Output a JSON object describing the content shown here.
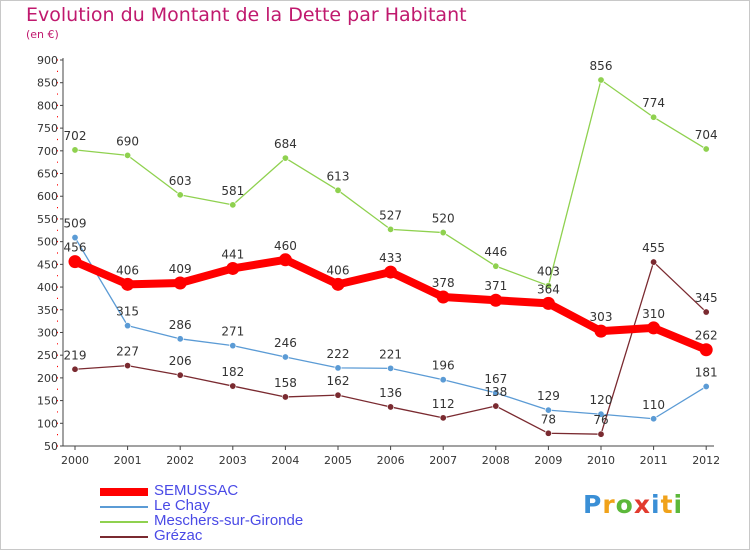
{
  "page": {
    "title": "Evolution du Montant de la Dette par Habitant",
    "subtitle": "(en €)",
    "brand_letters": [
      {
        "ch": "P",
        "color": "#3a8fd6"
      },
      {
        "ch": "r",
        "color": "#f0a21a"
      },
      {
        "ch": "o",
        "color": "#5cb83a"
      },
      {
        "ch": "x",
        "color": "#e23a2e"
      },
      {
        "ch": "i",
        "color": "#3a8fd6"
      },
      {
        "ch": "t",
        "color": "#f0a21a"
      },
      {
        "ch": "i",
        "color": "#5cb83a"
      }
    ]
  },
  "chart_data": {
    "type": "line",
    "x": [
      "2000",
      "2001",
      "2002",
      "2003",
      "2004",
      "2005",
      "2006",
      "2007",
      "2008",
      "2009",
      "2010",
      "2011",
      "2012"
    ],
    "ylim": [
      50,
      900
    ],
    "yticks": [
      50,
      100,
      150,
      200,
      250,
      300,
      350,
      400,
      450,
      500,
      550,
      600,
      650,
      700,
      750,
      800,
      850,
      900
    ],
    "grid": false,
    "legend": "bottom-left",
    "title": "Evolution du Montant de la Dette par Habitant",
    "ylabel": "(en €)",
    "series": [
      {
        "name": "SEMUSSAC",
        "color": "#ff0000",
        "values": [
          456,
          406,
          409,
          441,
          460,
          406,
          433,
          378,
          371,
          364,
          303,
          310,
          262
        ],
        "labels": [
          "456",
          "406",
          "409",
          "441",
          "460",
          "406",
          "433",
          "378",
          "371",
          "364",
          "303",
          "310",
          "262"
        ]
      },
      {
        "name": "Le Chay",
        "color": "#5b9bd5",
        "values": [
          509,
          315,
          286,
          271,
          246,
          222,
          221,
          196,
          167,
          129,
          120,
          110,
          181
        ],
        "labels": [
          "509",
          "315",
          "286",
          "271",
          "246",
          "222",
          "221",
          "196",
          "167",
          "129",
          "120",
          "110",
          "181"
        ]
      },
      {
        "name": "Meschers-sur-Gironde",
        "color": "#8fd14f",
        "values": [
          702,
          690,
          603,
          581,
          684,
          613,
          527,
          520,
          446,
          403,
          856,
          774,
          704
        ],
        "labels": [
          "702",
          "690",
          "603",
          "581",
          "684",
          "613",
          "527",
          "520",
          "446",
          "403",
          "856",
          "774",
          "704"
        ]
      },
      {
        "name": "Grézac",
        "color": "#7a2a30",
        "values": [
          219,
          227,
          206,
          182,
          158,
          162,
          136,
          112,
          138,
          78,
          76,
          455,
          345
        ],
        "labels": [
          "219",
          "227",
          "206",
          "182",
          "158",
          "162",
          "136",
          "112",
          "138",
          "78",
          "76",
          "455",
          "345"
        ]
      }
    ]
  }
}
